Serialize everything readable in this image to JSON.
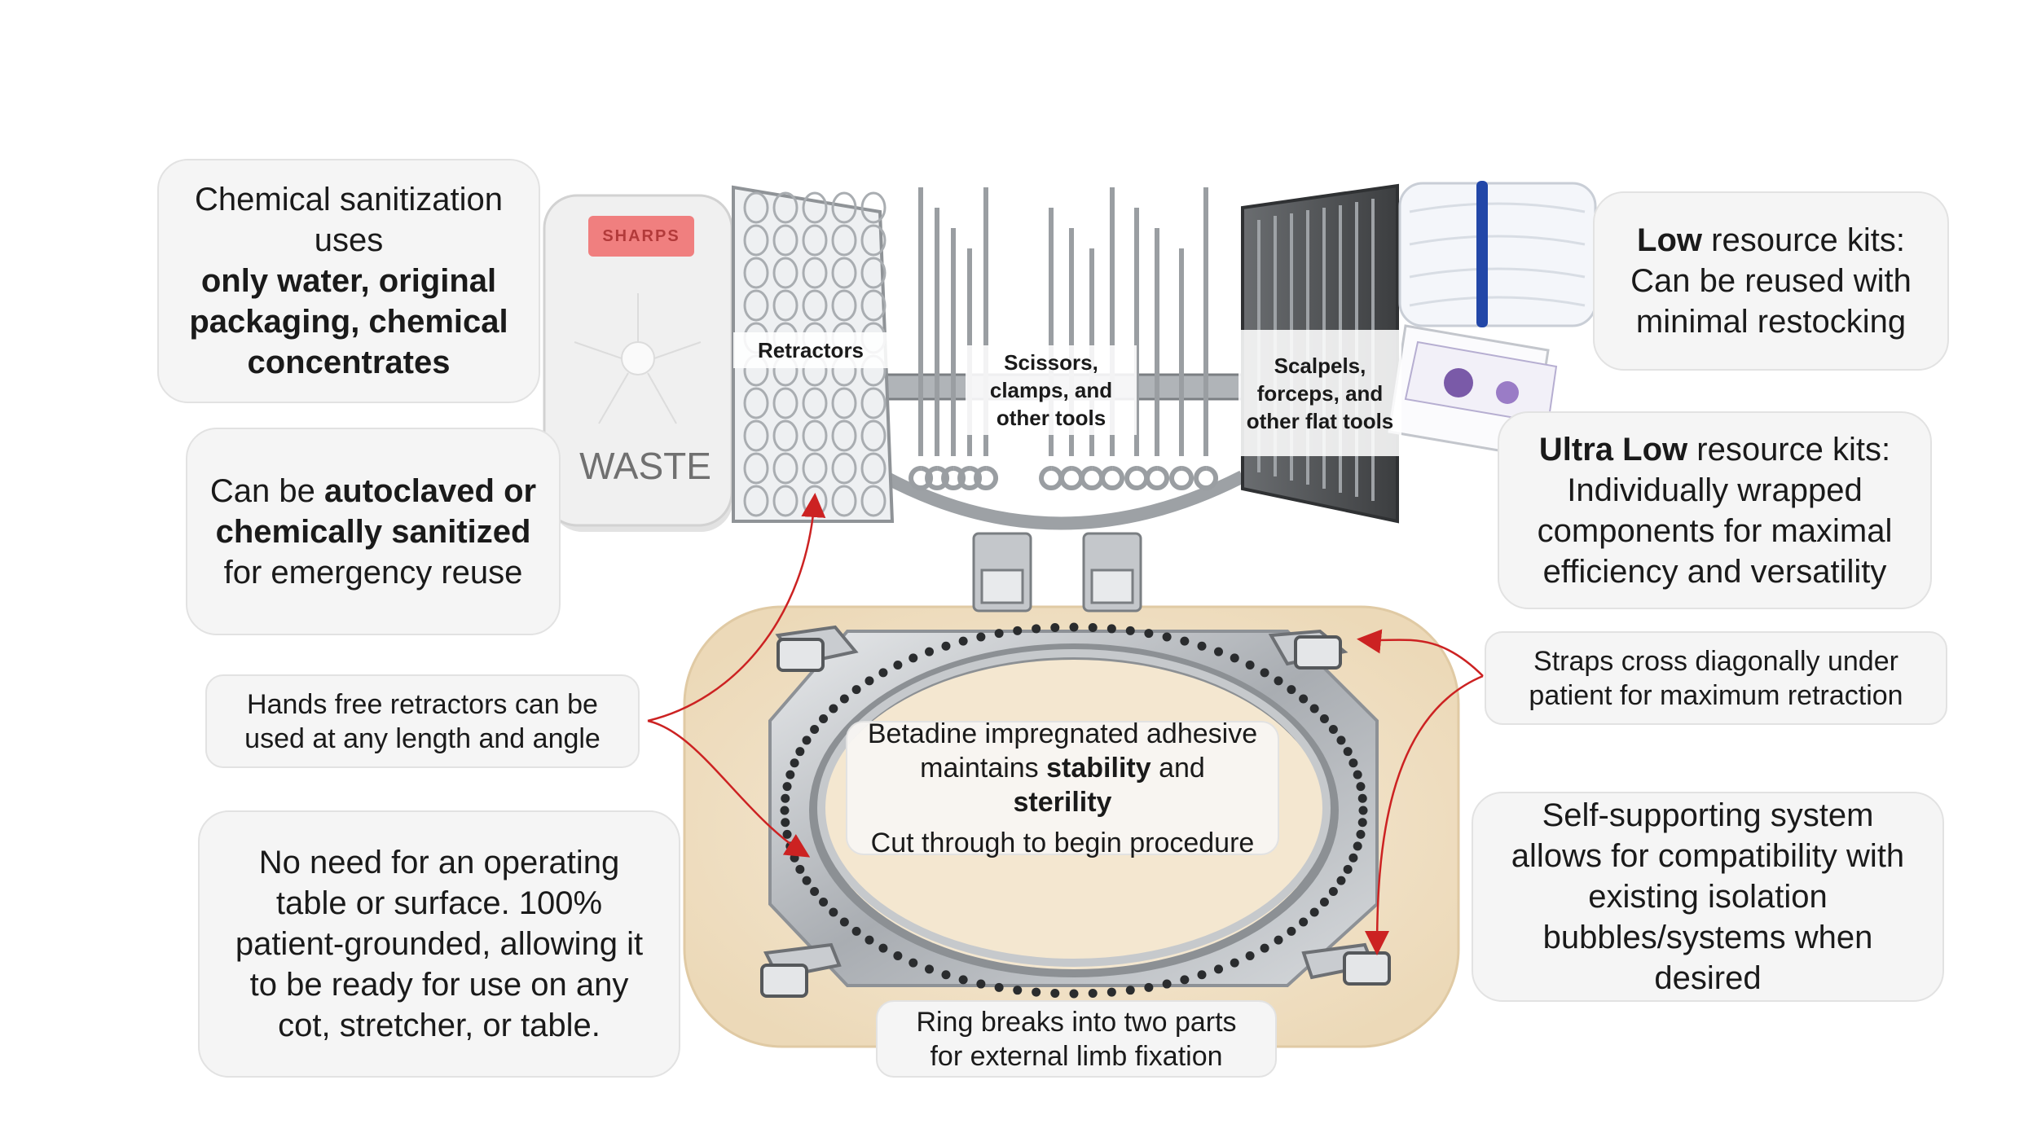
{
  "labels": {
    "sharps": "SHARPS",
    "waste": "WASTE",
    "retractors": "Retractors",
    "scissors": "Scissors, clamps, and other tools",
    "scalpels": "Scalpels, forceps, and other flat tools"
  },
  "callouts": {
    "chemical": {
      "l1": "Chemical sanitization uses",
      "b1": "only water, original packaging, chemical concentrates"
    },
    "autoclave": {
      "t1": "Can be",
      "b1": "autoclaved or chemically sanitized",
      "t2": "for emergency reuse"
    },
    "hands_free": "Hands free retractors can be used at any length and angle",
    "no_table": "No need for an operating table or surface. 100% patient-grounded, allowing it to be ready for use on any cot, stretcher, or table.",
    "low_kits": {
      "b1": "Low",
      "t1": "resource kits: Can be reused with minimal restocking"
    },
    "ultra_low": {
      "b1": "Ultra Low",
      "t1": "resource kits: Individually wrapped components for maximal efficiency and versatility"
    },
    "straps": "Straps cross diagonally under patient for maximum retraction",
    "self_supporting": "Self-supporting system allows for compatibility with existing isolation bubbles/systems when desired",
    "betadine": {
      "t1": "Betadine impregnated adhesive maintains",
      "b1": "stability",
      "t2": "and",
      "b2": "sterility",
      "t3": "Cut through to begin procedure"
    },
    "ring": "Ring breaks into two parts for external limb fixation"
  },
  "colors": {
    "callout_bg": "#f5f5f5",
    "pad": "#f3e6cf",
    "sharps_red": "#f07f7f",
    "arrow_red": "#cc2222",
    "metal": "#bfc3c8"
  }
}
